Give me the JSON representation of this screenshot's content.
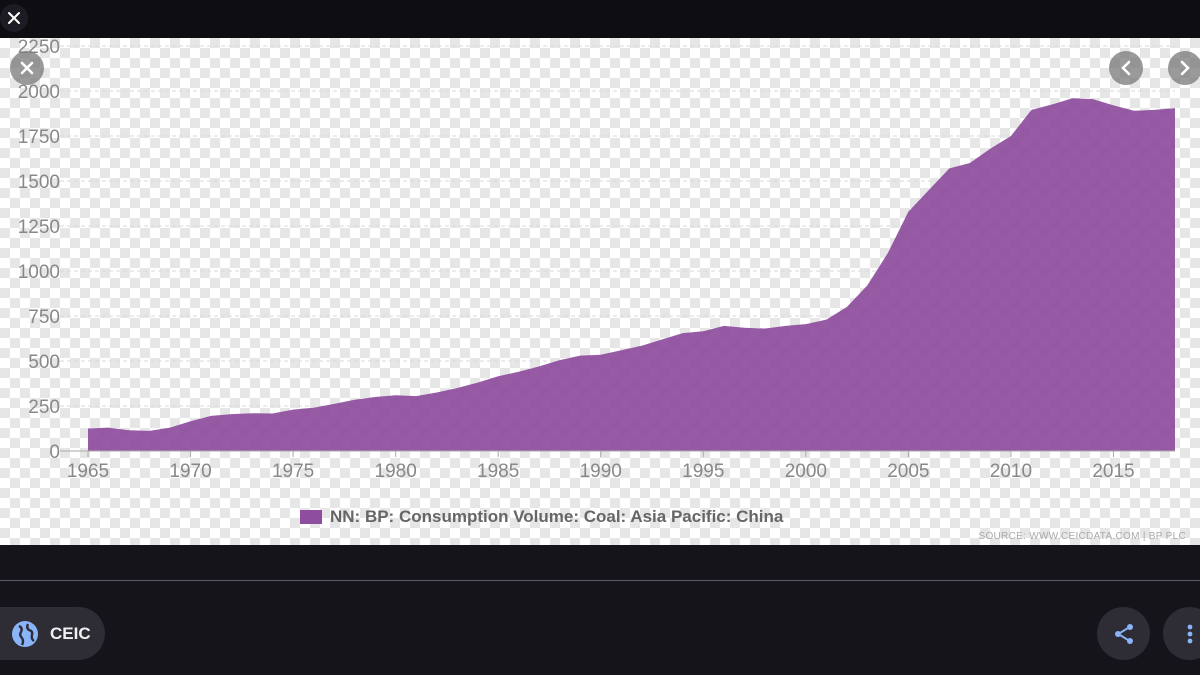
{
  "brand": {
    "name": "CEIC"
  },
  "icons": {
    "close_top": "close-icon",
    "close_overlay": "close-icon",
    "prev": "chevron-left-icon",
    "next": "chevron-right-icon",
    "share": "share-icon",
    "more": "more-vertical-icon",
    "brand": "globe-icon"
  },
  "colors": {
    "series": "#8e4d9e",
    "background": "#15141b",
    "chip": "#2e2d35",
    "accent_icon": "#8ab4f8"
  },
  "chart_data": {
    "type": "area",
    "title": "",
    "xlabel": "",
    "ylabel": "",
    "xlim": [
      1965,
      2018
    ],
    "ylim": [
      0,
      2250
    ],
    "yticks": [
      0,
      250,
      500,
      750,
      1000,
      1250,
      1500,
      1750,
      2000,
      2250
    ],
    "xticks": [
      1965,
      1970,
      1975,
      1980,
      1985,
      1990,
      1995,
      2000,
      2005,
      2010,
      2015
    ],
    "grid": true,
    "legend_position": "bottom-center",
    "series": [
      {
        "name": "NN: BP: Consumption Volume: Coal: Asia Pacific: China",
        "color": "#8e4d9e",
        "x": [
          1965,
          1966,
          1967,
          1968,
          1969,
          1970,
          1971,
          1972,
          1973,
          1974,
          1975,
          1976,
          1977,
          1978,
          1979,
          1980,
          1981,
          1982,
          1983,
          1984,
          1985,
          1986,
          1987,
          1988,
          1989,
          1990,
          1991,
          1992,
          1993,
          1994,
          1995,
          1996,
          1997,
          1998,
          1999,
          2000,
          2001,
          2002,
          2003,
          2004,
          2005,
          2006,
          2007,
          2008,
          2009,
          2010,
          2011,
          2012,
          2013,
          2014,
          2015,
          2016,
          2017,
          2018
        ],
        "values": [
          125,
          130,
          115,
          112,
          130,
          165,
          195,
          205,
          210,
          208,
          230,
          240,
          262,
          285,
          300,
          310,
          305,
          325,
          350,
          380,
          415,
          440,
          470,
          505,
          530,
          535,
          560,
          585,
          620,
          655,
          665,
          695,
          685,
          680,
          695,
          705,
          730,
          800,
          920,
          1100,
          1330,
          1450,
          1570,
          1600,
          1680,
          1750,
          1895,
          1925,
          1960,
          1955,
          1920,
          1890,
          1895,
          1905
        ]
      }
    ],
    "source_note": "SOURCE: WWW.CEICDATA.COM | BP PLC"
  }
}
